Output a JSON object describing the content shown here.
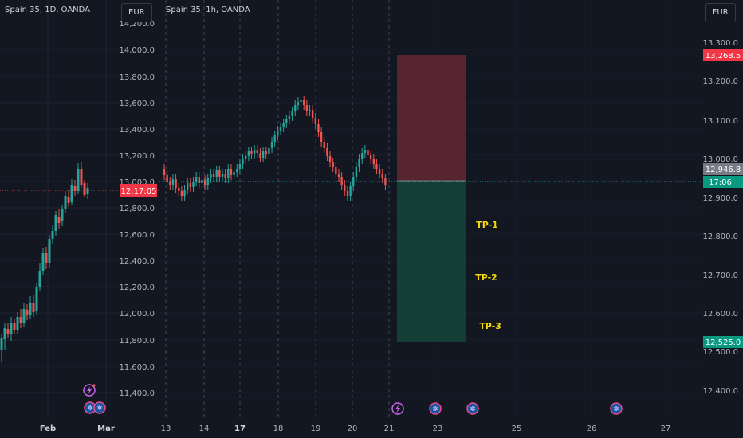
{
  "left_chart": {
    "title": "Spain 35, 1D, OANDA",
    "currency": "EUR",
    "price_axis": [
      "14,000.0",
      "13,800.0",
      "13,600.0",
      "13,400.0",
      "13,200.0",
      "13,000.0",
      "12,800.0",
      "12,600.0",
      "12,400.0",
      "12,200.0",
      "12,000.0",
      "11,800.0",
      "11,600.0",
      "11,400.0"
    ],
    "price_axis_top_partial": "14,200.0",
    "countdown_tag": "12:17:05",
    "time_axis": [
      "Feb",
      "Mar"
    ]
  },
  "right_chart": {
    "title": "Spain 35, 1h, OANDA",
    "currency": "EUR",
    "price_axis": [
      "13,300.0",
      "13,200.0",
      "13,100.0",
      "13,000.0",
      "12,900.0",
      "12,800.0",
      "12,700.0",
      "12,600.0",
      "12,500.0",
      "12,400.0"
    ],
    "stop_tag": "13,268.5",
    "last_price_tag": "12,946.8",
    "countdown_tag": "17:06",
    "target_tag": "12,525.0",
    "time_axis": [
      "13",
      "14",
      "17",
      "18",
      "19",
      "20",
      "21",
      "23",
      "25",
      "26",
      "27"
    ],
    "take_profits": [
      "TP-1",
      "TP-2",
      "TP-3"
    ]
  },
  "colors": {
    "background": "#131722",
    "up_candle": "#26a69a",
    "down_candle": "#ef5350",
    "stop_zone": "#5b2631",
    "target_zone": "#134139",
    "tp_label": "#f5d90a",
    "stop_tag": "#f23645",
    "target_tag": "#089981",
    "price_tag": "#787b86"
  },
  "icons": [
    "dividend-icon",
    "flash-icon"
  ]
}
